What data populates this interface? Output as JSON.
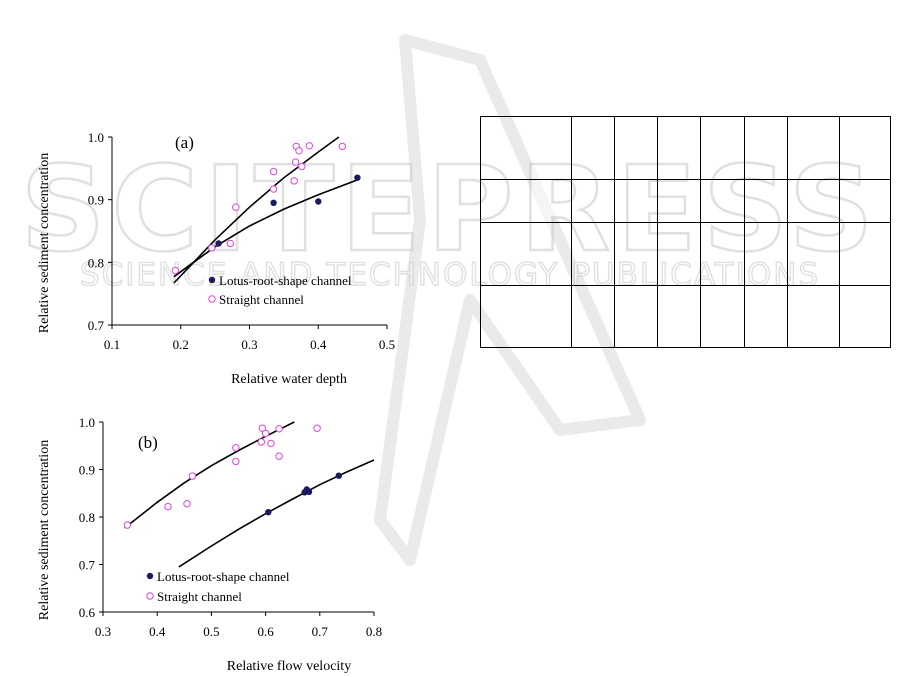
{
  "chart_data": [
    {
      "type": "scatter",
      "panel_label": "(a)",
      "xlabel": "Relative water depth",
      "ylabel": "Relative sediment concentration",
      "xlim": [
        0.1,
        0.5
      ],
      "ylim": [
        0.7,
        1.0
      ],
      "xticks": [
        "0.1",
        "0.2",
        "0.3",
        "0.4",
        "0.5"
      ],
      "yticks": [
        "0.7",
        "0.8",
        "0.9",
        "1.0"
      ],
      "legend": "bottom-right",
      "grid": false,
      "series": [
        {
          "name": "Lotus-root-shape channel",
          "marker": "filled-circle",
          "color": "#1a1a5e",
          "points": [
            [
              0.255,
              0.83
            ],
            [
              0.335,
              0.895
            ],
            [
              0.4,
              0.897
            ],
            [
              0.457,
              0.935
            ]
          ],
          "fit": [
            [
              0.19,
              0.777
            ],
            [
              0.25,
              0.825
            ],
            [
              0.3,
              0.858
            ],
            [
              0.35,
              0.885
            ],
            [
              0.4,
              0.908
            ],
            [
              0.458,
              0.932
            ]
          ]
        },
        {
          "name": "Straight channel",
          "marker": "open-circle",
          "color": "#dd44dd",
          "points": [
            [
              0.192,
              0.787
            ],
            [
              0.245,
              0.823
            ],
            [
              0.272,
              0.83
            ],
            [
              0.28,
              0.888
            ],
            [
              0.335,
              0.917
            ],
            [
              0.335,
              0.945
            ],
            [
              0.365,
              0.93
            ],
            [
              0.367,
              0.96
            ],
            [
              0.368,
              0.985
            ],
            [
              0.372,
              0.978
            ],
            [
              0.376,
              0.953
            ],
            [
              0.387,
              0.986
            ],
            [
              0.435,
              0.985
            ]
          ],
          "fit": [
            [
              0.19,
              0.767
            ],
            [
              0.25,
              0.836
            ],
            [
              0.3,
              0.888
            ],
            [
              0.35,
              0.935
            ],
            [
              0.4,
              0.976
            ],
            [
              0.43,
              1.0
            ]
          ]
        }
      ]
    },
    {
      "type": "scatter",
      "panel_label": "(b)",
      "xlabel": "Relative flow velocity",
      "ylabel": "Relative sediment concentration",
      "xlim": [
        0.3,
        0.8
      ],
      "ylim": [
        0.6,
        1.0
      ],
      "xticks": [
        "0.3",
        "0.4",
        "0.5",
        "0.6",
        "0.7",
        "0.8"
      ],
      "yticks": [
        "0.6",
        "0.7",
        "0.8",
        "0.9",
        "1.0"
      ],
      "legend": "bottom-left",
      "grid": false,
      "series": [
        {
          "name": "Lotus-root-shape channel",
          "marker": "filled-circle",
          "color": "#1a1a5e",
          "points": [
            [
              0.605,
              0.81
            ],
            [
              0.672,
              0.852
            ],
            [
              0.676,
              0.858
            ],
            [
              0.68,
              0.853
            ],
            [
              0.735,
              0.887
            ]
          ],
          "fit": [
            [
              0.44,
              0.695
            ],
            [
              0.5,
              0.739
            ],
            [
              0.55,
              0.774
            ],
            [
              0.6,
              0.807
            ],
            [
              0.65,
              0.838
            ],
            [
              0.7,
              0.868
            ],
            [
              0.75,
              0.895
            ],
            [
              0.8,
              0.92
            ]
          ]
        },
        {
          "name": "Straight channel",
          "marker": "open-circle",
          "color": "#dd44dd",
          "points": [
            [
              0.345,
              0.783
            ],
            [
              0.42,
              0.822
            ],
            [
              0.455,
              0.828
            ],
            [
              0.465,
              0.886
            ],
            [
              0.545,
              0.917
            ],
            [
              0.545,
              0.946
            ],
            [
              0.592,
              0.958
            ],
            [
              0.594,
              0.987
            ],
            [
              0.6,
              0.976
            ],
            [
              0.61,
              0.955
            ],
            [
              0.625,
              0.928
            ],
            [
              0.625,
              0.986
            ],
            [
              0.695,
              0.987
            ]
          ],
          "fit": [
            [
              0.34,
              0.777
            ],
            [
              0.4,
              0.831
            ],
            [
              0.45,
              0.872
            ],
            [
              0.5,
              0.908
            ],
            [
              0.55,
              0.94
            ],
            [
              0.6,
              0.97
            ],
            [
              0.653,
              1.0
            ]
          ]
        }
      ]
    }
  ],
  "watermark": {
    "big_text": "SCITEPRESS",
    "sub_text": "SCIENCE AND TECHNOLOGY PUBLICATIONS"
  },
  "table": {
    "rows": 4,
    "cols": 8,
    "cells": []
  }
}
